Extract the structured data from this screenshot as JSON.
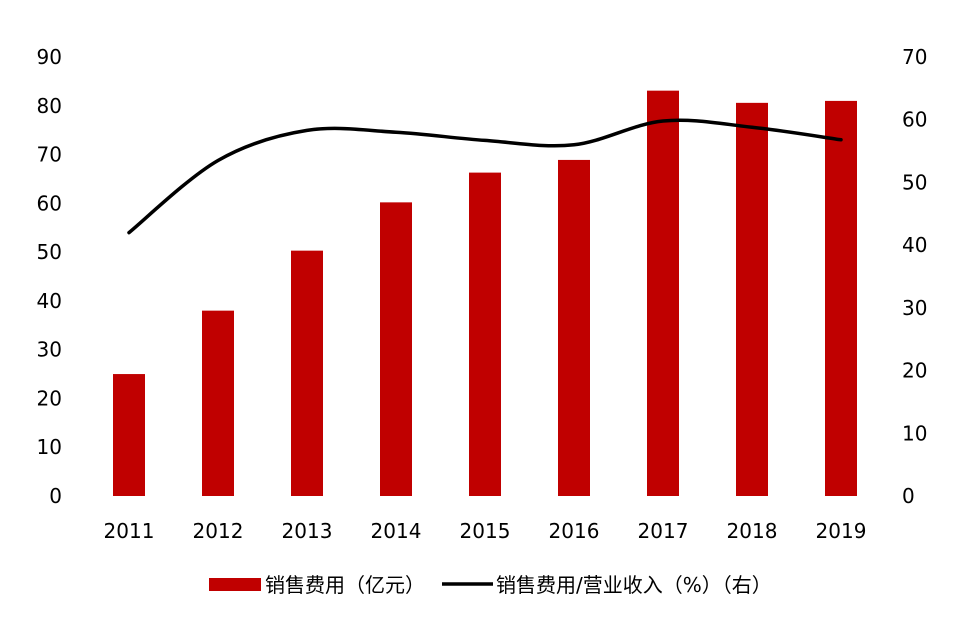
{
  "chart_data": {
    "type": "bar",
    "categories": [
      "2011",
      "2012",
      "2013",
      "2014",
      "2015",
      "2016",
      "2017",
      "2018",
      "2019"
    ],
    "series": [
      {
        "name": "销售费用（亿元）",
        "type": "bar",
        "axis": "left",
        "color": "#C00000",
        "values": [
          25,
          38,
          50.3,
          60.2,
          66.3,
          68.9,
          83.1,
          80.6,
          81
        ]
      },
      {
        "name": "销售费用/营业收入（%）（右）",
        "type": "line",
        "axis": "right",
        "color": "#000000",
        "values": [
          42,
          53.5,
          58.3,
          58,
          56.7,
          56,
          59.8,
          58.8,
          56.8
        ]
      }
    ],
    "y_left": {
      "lim": [
        0,
        90
      ],
      "ticks": [
        "0",
        "10",
        "20",
        "30",
        "40",
        "50",
        "60",
        "70",
        "80",
        "90"
      ]
    },
    "y_right": {
      "lim": [
        0,
        70
      ],
      "ticks": [
        "0",
        "10",
        "20",
        "30",
        "40",
        "50",
        "60",
        "70"
      ]
    },
    "grid": false,
    "legend_position": "bottom"
  }
}
